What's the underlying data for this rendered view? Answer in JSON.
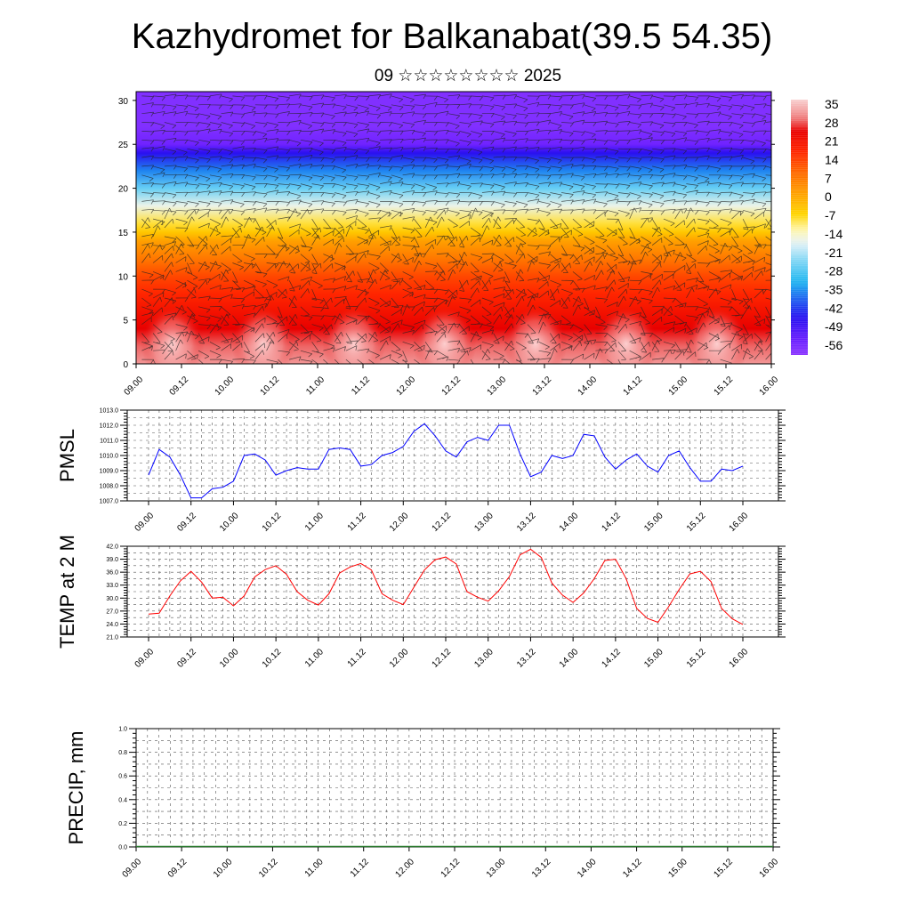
{
  "header": {
    "title": "Kazhydromet for Balkanabat(39.5 54.35)",
    "subtitle": "09 ☆☆☆☆☆☆☆☆ 2025"
  },
  "colors": {
    "pmsl_line": "#0000ff",
    "temp_line": "#ff0000",
    "precip_line": "#2e7d32",
    "frame": "#000000"
  },
  "chart_data": [
    {
      "type": "heatmap",
      "id": "temperature_wind_profile",
      "title": "",
      "x_ticks": [
        "09.00",
        "09.12",
        "10.00",
        "10.12",
        "11.00",
        "11.12",
        "12.00",
        "12.12",
        "13.00",
        "13.12",
        "14.00",
        "14.12",
        "15.00",
        "15.12",
        "16.00"
      ],
      "y_ticks": [
        0,
        5,
        10,
        15,
        20,
        25,
        30
      ],
      "ylim": [
        0,
        31
      ],
      "colorbar_labels": [
        35,
        28,
        21,
        14,
        7,
        0,
        -7,
        -14,
        -21,
        -28,
        -35,
        -42,
        -49,
        -56
      ],
      "colorbar_range": [
        -60,
        38
      ],
      "profile_by_level": {
        "levels": [
          0,
          2,
          4,
          6,
          8,
          10,
          12,
          14,
          15,
          16,
          18,
          20,
          22,
          24,
          25,
          27,
          29,
          31
        ],
        "values": [
          33,
          30,
          26,
          22,
          18,
          14,
          8,
          2,
          -4,
          -8,
          -16,
          -26,
          -36,
          -46,
          -55,
          -58,
          -58,
          -58
        ]
      },
      "overlay": "wind barbs"
    },
    {
      "type": "line",
      "id": "pmsl",
      "ylabel": "PMSL",
      "ylim": [
        1007.0,
        1013.0
      ],
      "y_ticks": [
        "1007.0",
        "1008.0",
        "1009.0",
        "1010.0",
        "1011.0",
        "1012.0",
        "1013.0"
      ],
      "x_ticks": [
        "09.00",
        "09.12",
        "10.00",
        "10.12",
        "11.00",
        "11.12",
        "12.00",
        "12.12",
        "13.00",
        "13.12",
        "14.00",
        "14.12",
        "15.00",
        "15.12",
        "16.00"
      ],
      "x_hours": [
        0,
        3,
        6,
        9,
        12,
        15,
        18,
        21,
        24,
        27,
        30,
        33,
        36,
        39,
        42,
        45,
        48,
        51,
        54,
        57,
        60,
        63,
        66,
        69,
        72,
        75,
        78,
        81,
        84,
        87,
        90,
        93,
        96,
        99,
        102,
        105,
        108,
        111,
        114,
        117,
        120,
        123,
        126,
        129,
        132,
        135,
        138,
        141,
        144,
        147,
        150,
        153,
        156,
        159,
        162,
        165,
        168
      ],
      "values": [
        1008.7,
        1010.4,
        1009.9,
        1008.7,
        1007.2,
        1007.2,
        1007.8,
        1007.9,
        1008.3,
        1010.0,
        1010.1,
        1009.7,
        1008.7,
        1009.0,
        1009.2,
        1009.1,
        1009.1,
        1010.4,
        1010.5,
        1010.4,
        1009.3,
        1009.4,
        1010.0,
        1010.2,
        1010.6,
        1011.6,
        1012.1,
        1011.3,
        1010.3,
        1009.9,
        1010.9,
        1011.2,
        1011.0,
        1012.0,
        1012.0,
        1010.1,
        1008.6,
        1008.9,
        1010.0,
        1009.8,
        1010.0,
        1011.4,
        1011.3,
        1009.9,
        1009.1,
        1009.7,
        1010.1,
        1009.3,
        1008.9,
        1010.0,
        1010.3,
        1009.2,
        1008.3,
        1008.3,
        1009.1,
        1009.0,
        1009.3
      ]
    },
    {
      "type": "line",
      "id": "temp2m",
      "ylabel": "TEMP at 2 M",
      "ylim": [
        21.0,
        42.0
      ],
      "y_ticks": [
        "21.0",
        "24.0",
        "27.0",
        "30.0",
        "33.0",
        "36.0",
        "39.0",
        "42.0"
      ],
      "x_ticks": [
        "09.00",
        "09.12",
        "10.00",
        "10.12",
        "11.00",
        "11.12",
        "12.00",
        "12.12",
        "13.00",
        "13.12",
        "14.00",
        "14.12",
        "15.00",
        "15.12",
        "16.00"
      ],
      "x_hours": [
        0,
        3,
        6,
        9,
        12,
        15,
        18,
        21,
        24,
        27,
        30,
        33,
        36,
        39,
        42,
        45,
        48,
        51,
        54,
        57,
        60,
        63,
        66,
        69,
        72,
        75,
        78,
        81,
        84,
        87,
        90,
        93,
        96,
        99,
        102,
        105,
        108,
        111,
        114,
        117,
        120,
        123,
        126,
        129,
        132,
        135,
        138,
        141,
        144,
        147,
        150,
        153,
        156,
        159,
        162,
        165,
        168
      ],
      "values": [
        26.3,
        26.5,
        30.5,
        34.0,
        36.2,
        33.7,
        30.0,
        30.2,
        28.2,
        30.5,
        34.9,
        36.6,
        37.5,
        35.5,
        31.5,
        29.5,
        28.4,
        31.0,
        35.8,
        37.2,
        38.0,
        36.5,
        31.0,
        29.5,
        28.5,
        32.5,
        36.5,
        38.9,
        39.5,
        37.9,
        31.5,
        30.2,
        29.3,
        31.7,
        35.0,
        40.0,
        41.3,
        39.4,
        33.5,
        30.7,
        29.0,
        31.2,
        34.5,
        38.7,
        39.0,
        34.5,
        27.6,
        25.3,
        24.4,
        28.0,
        32.0,
        35.6,
        36.2,
        33.8,
        27.6,
        25.2,
        23.9
      ]
    },
    {
      "type": "line",
      "id": "precip",
      "ylabel": "PRECIP, mm",
      "ylim": [
        0.0,
        1.0
      ],
      "y_ticks": [
        "0.0",
        "0.2",
        "0.4",
        "0.6",
        "0.8",
        "1.0"
      ],
      "x_ticks": [
        "09.00",
        "09.12",
        "10.00",
        "10.12",
        "11.00",
        "11.12",
        "12.00",
        "12.12",
        "13.00",
        "13.12",
        "14.00",
        "14.12",
        "15.00",
        "15.12",
        "16.00"
      ],
      "values": [
        0,
        0
      ]
    }
  ]
}
